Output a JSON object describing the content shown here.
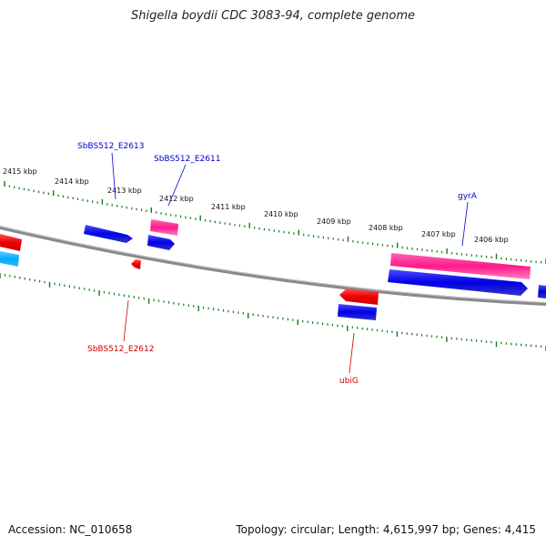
{
  "title": "Shigella boydii CDC 3083-94, complete genome",
  "footer": {
    "accession": "Accession: NC_010658",
    "summary": "Topology: circular; Length: 4,615,997 bp; Genes: 4,415"
  },
  "colors": {
    "backbone": "#888888",
    "tick": "#1a7a1a",
    "forward_cds": "#0000e6",
    "reverse_cds": "#ff0000",
    "forward_rna": "#ff3399",
    "reverse_rna": "#00aaff",
    "label_forward": "#0000cc",
    "label_reverse": "#cc0000"
  },
  "tick_labels": [
    "2415 kbp",
    "2414 kbp",
    "2413 kbp",
    "2412 kbp",
    "2411 kbp",
    "2410 kbp",
    "2409 kbp",
    "2408 kbp",
    "2407 kbp",
    "2406 kbp"
  ],
  "gene_labels": [
    {
      "id": "lbl-e2613",
      "text": "SbBS512_E2613",
      "strand": "forward"
    },
    {
      "id": "lbl-e2611",
      "text": "SbBS512_E2611",
      "strand": "forward"
    },
    {
      "id": "lbl-gyra",
      "text": "gyrA",
      "strand": "forward"
    },
    {
      "id": "lbl-e2612",
      "text": "SbBS512_E2612",
      "strand": "reverse"
    },
    {
      "id": "lbl-ubig",
      "text": "ubiG",
      "strand": "reverse"
    }
  ]
}
